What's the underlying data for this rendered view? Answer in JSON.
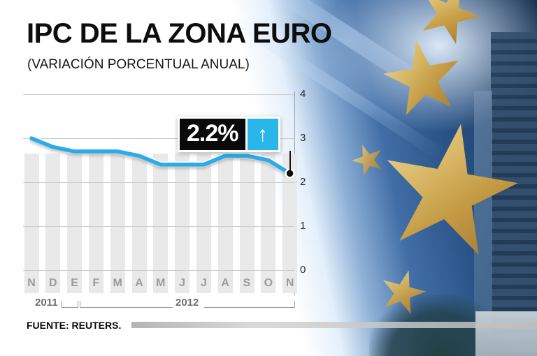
{
  "chart_data": {
    "type": "line",
    "title": "IPC DE LA ZONA EURO",
    "subtitle": "(VARIACIÓN PORCENTUAL ANUAL)",
    "categories": [
      "N",
      "D",
      "E",
      "F",
      "M",
      "A",
      "M",
      "J",
      "J",
      "A",
      "S",
      "O",
      "N"
    ],
    "values": [
      3.0,
      2.8,
      2.7,
      2.7,
      2.7,
      2.6,
      2.4,
      2.4,
      2.4,
      2.6,
      2.6,
      2.5,
      2.2
    ],
    "ylim": [
      0,
      4
    ],
    "yticks": [
      0,
      1,
      2,
      3,
      4
    ],
    "grid": true,
    "legend": false,
    "year_groups": [
      {
        "label": "2011",
        "categories": [
          "N",
          "D"
        ]
      },
      {
        "label": "2012",
        "categories": [
          "E",
          "F",
          "M",
          "A",
          "M",
          "J",
          "J",
          "A",
          "S",
          "O",
          "N"
        ]
      }
    ],
    "highlight": {
      "category_index": 12,
      "value": 2.2,
      "label": "2.2%"
    }
  },
  "callout": {
    "value": "2.2%",
    "arrow_glyph": "↑"
  },
  "source": {
    "label": "FUENTE: REUTERS."
  },
  "colors": {
    "line": "#2bacea",
    "accent": "#29b6e8",
    "stripe": "#e9e9e9",
    "grid": "#cdcdcd",
    "star_gold": "#cfa95c",
    "photo_blue": "#2e5d95"
  }
}
